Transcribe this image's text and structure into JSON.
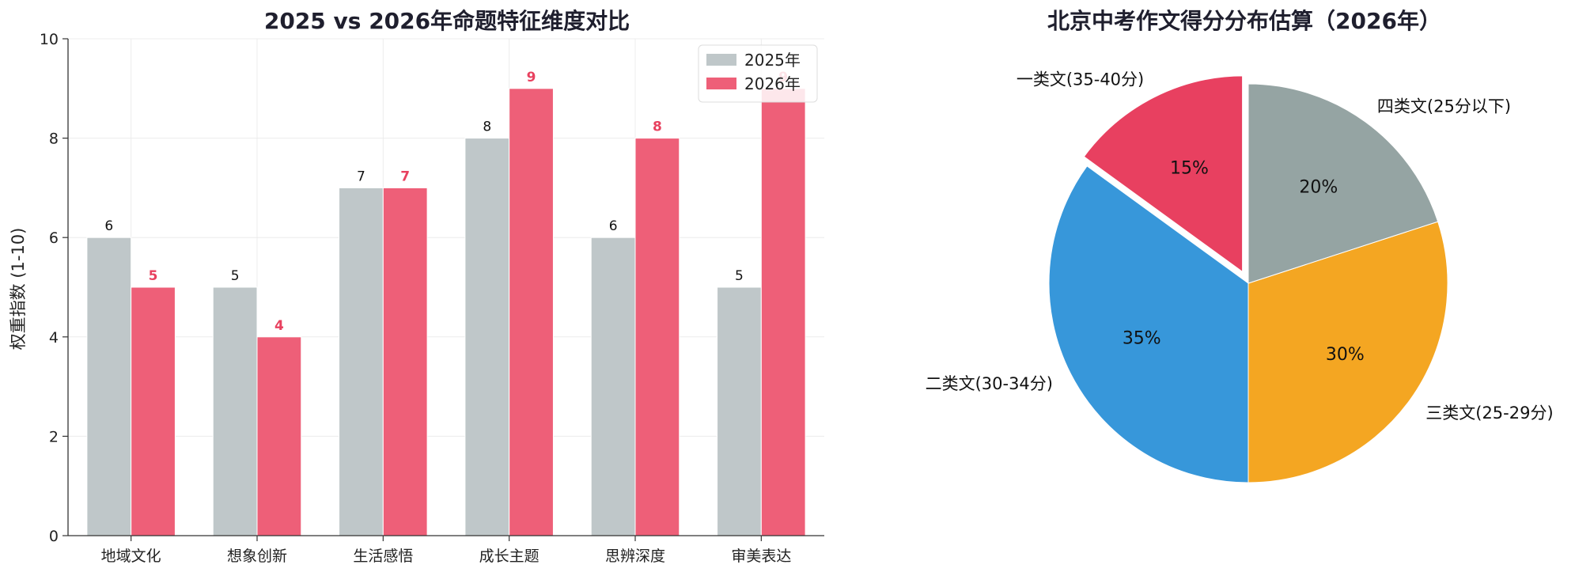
{
  "chart_data": [
    {
      "type": "bar",
      "title": "2025 vs 2026年命题特征维度对比",
      "ylabel": "权重指数 (1-10)",
      "xlabel": "",
      "ylim": [
        0,
        10
      ],
      "yticks": [
        "0",
        "2",
        "4",
        "6",
        "8",
        "10"
      ],
      "grid": true,
      "legend": "top-right",
      "categories": [
        "地域文化",
        "想象创新",
        "生活感悟",
        "成长主题",
        "思辨深度",
        "审美表达"
      ],
      "series": [
        {
          "name": "2025年",
          "color": "#bfc7c9",
          "values": [
            6,
            5,
            7,
            8,
            6,
            5
          ]
        },
        {
          "name": "2026年",
          "color": "#ee5f78",
          "label_color": "#e8415f",
          "values": [
            5,
            4,
            7,
            9,
            8,
            9
          ]
        }
      ]
    },
    {
      "type": "pie",
      "title": "北京中考作文得分分布估算（2026年）",
      "slices": [
        {
          "label": "一类文(35-40分)",
          "value": 15,
          "pct_label": "15%",
          "color": "#e84060",
          "exploded": true
        },
        {
          "label": "二类文(30-34分)",
          "value": 35,
          "pct_label": "35%",
          "color": "#3797da",
          "exploded": false
        },
        {
          "label": "三类文(25-29分)",
          "value": 30,
          "pct_label": "30%",
          "color": "#f4a622",
          "exploded": false
        },
        {
          "label": "四类文(25分以下)",
          "value": 20,
          "pct_label": "20%",
          "color": "#95a4a3",
          "exploded": false
        }
      ]
    }
  ]
}
